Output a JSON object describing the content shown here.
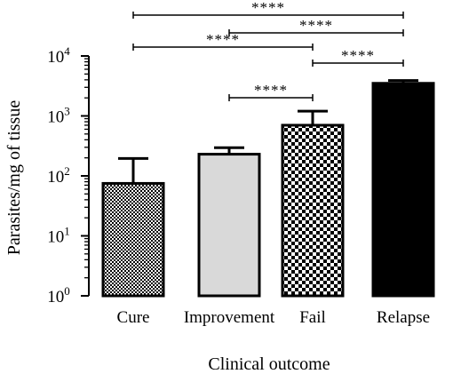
{
  "chart_data": {
    "type": "bar",
    "xlabel": "Clinical outcome",
    "ylabel": "Parasites/mg of tissue",
    "yscale": "log",
    "ylim": [
      1,
      10000
    ],
    "y_ticks": [
      {
        "value": 1,
        "base": "10",
        "exp": "0"
      },
      {
        "value": 10,
        "base": "10",
        "exp": "1"
      },
      {
        "value": 100,
        "base": "10",
        "exp": "2"
      },
      {
        "value": 1000,
        "base": "10",
        "exp": "3"
      },
      {
        "value": 10000,
        "base": "10",
        "exp": "4"
      }
    ],
    "categories": [
      "Cure",
      "Improvement",
      "Fail",
      "Relapse"
    ],
    "values": [
      75,
      230,
      700,
      3500
    ],
    "error_upper": [
      195,
      295,
      1200,
      3900
    ],
    "fills": [
      "checker-fine",
      "light-gray",
      "checker-coarse",
      "black"
    ],
    "colors": {
      "light_gray": "#d9d9d9",
      "black": "#000000"
    },
    "significance": [
      {
        "from": "Cure",
        "to": "Relapse",
        "label": "****"
      },
      {
        "from": "Cure",
        "to": "Fail",
        "label": "****"
      },
      {
        "from": "Improvement",
        "to": "Relapse",
        "label": "****"
      },
      {
        "from": "Fail",
        "to": "Relapse",
        "label": "****"
      },
      {
        "from": "Improvement",
        "to": "Fail",
        "label": "****"
      }
    ]
  }
}
